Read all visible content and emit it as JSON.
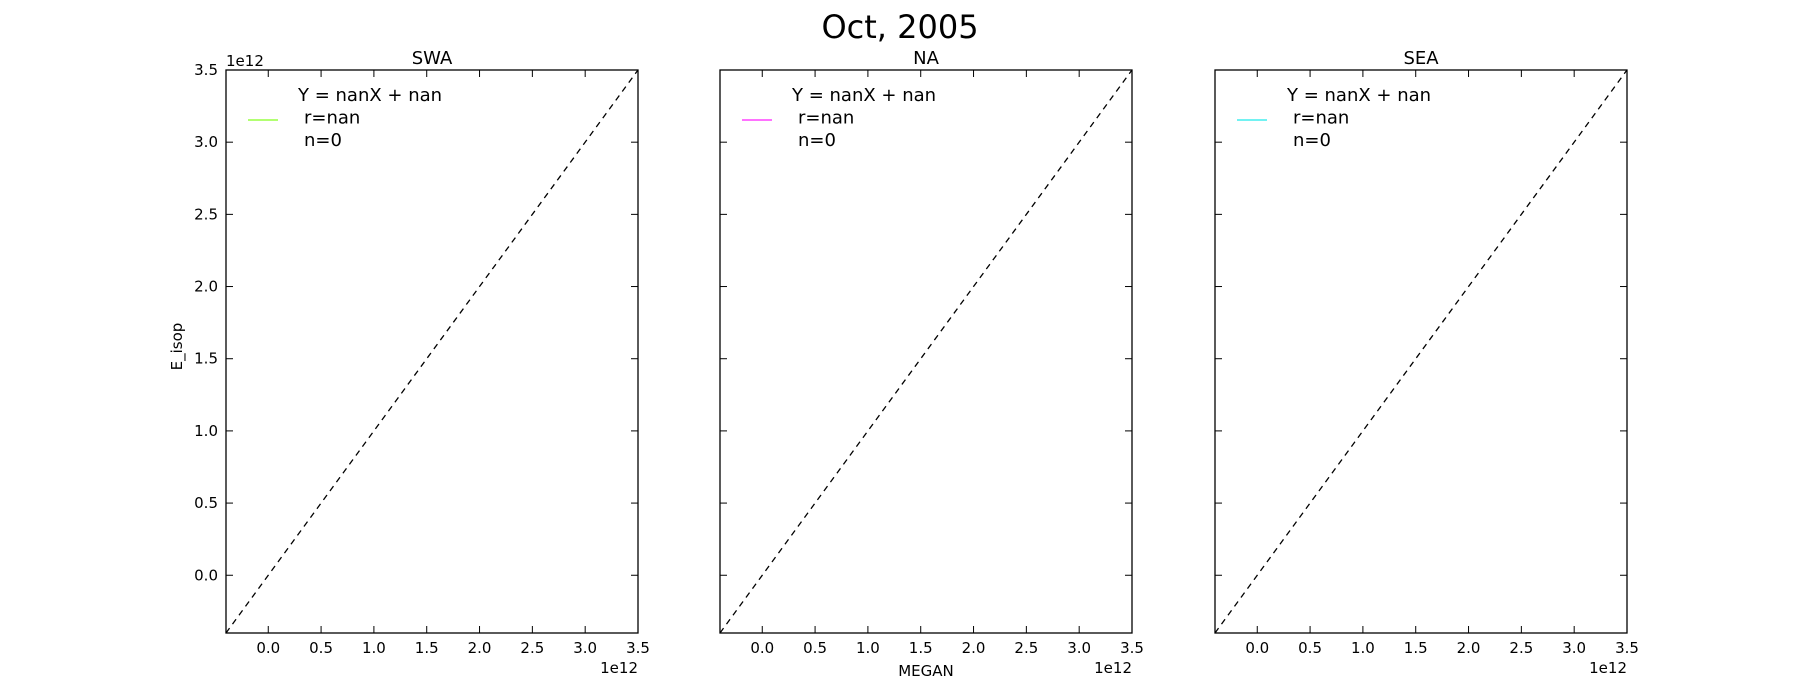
{
  "figure": {
    "title": "Oct, 2005"
  },
  "chart_data": [
    {
      "type": "scatter",
      "title": "SWA",
      "xlabel": "",
      "ylabel": "E_isop",
      "x_offset_label": "1e12",
      "y_offset_label": "1e12",
      "xlim": [
        -0.4,
        3.5
      ],
      "ylim": [
        -0.4,
        3.5
      ],
      "x_ticks": [
        0.0,
        0.5,
        1.0,
        1.5,
        2.0,
        2.5,
        3.0,
        3.5
      ],
      "x_tick_labels": [
        "0.0",
        "0.5",
        "1.0",
        "1.5",
        "2.0",
        "2.5",
        "3.0",
        "3.5"
      ],
      "y_ticks": [
        0.0,
        0.5,
        1.0,
        1.5,
        2.0,
        2.5,
        3.0,
        3.5
      ],
      "y_tick_labels": [
        "0.0",
        "0.5",
        "1.0",
        "1.5",
        "2.0",
        "2.5",
        "3.0",
        "3.5"
      ],
      "show_y_tick_labels": true,
      "points": [],
      "one_to_one_line": true,
      "legend": {
        "placement": "top-left",
        "color": "#99ff44",
        "lines": [
          "Y = nanX + nan",
          "r=nan",
          "n=0"
        ]
      }
    },
    {
      "type": "scatter",
      "title": "NA",
      "xlabel": "MEGAN",
      "ylabel": "",
      "x_offset_label": "1e12",
      "y_offset_label": "",
      "xlim": [
        -0.4,
        3.5
      ],
      "ylim": [
        -0.4,
        3.5
      ],
      "x_ticks": [
        0.0,
        0.5,
        1.0,
        1.5,
        2.0,
        2.5,
        3.0,
        3.5
      ],
      "x_tick_labels": [
        "0.0",
        "0.5",
        "1.0",
        "1.5",
        "2.0",
        "2.5",
        "3.0",
        "3.5"
      ],
      "y_ticks": [
        0.0,
        0.5,
        1.0,
        1.5,
        2.0,
        2.5,
        3.0,
        3.5
      ],
      "y_tick_labels": [],
      "show_y_tick_labels": false,
      "points": [],
      "one_to_one_line": true,
      "legend": {
        "placement": "top-left",
        "color": "#ff44ff",
        "lines": [
          "Y = nanX + nan",
          "r=nan",
          "n=0"
        ]
      }
    },
    {
      "type": "scatter",
      "title": "SEA",
      "xlabel": "",
      "ylabel": "",
      "x_offset_label": "1e12",
      "y_offset_label": "",
      "xlim": [
        -0.4,
        3.5
      ],
      "ylim": [
        -0.4,
        3.5
      ],
      "x_ticks": [
        0.0,
        0.5,
        1.0,
        1.5,
        2.0,
        2.5,
        3.0,
        3.5
      ],
      "x_tick_labels": [
        "0.0",
        "0.5",
        "1.0",
        "1.5",
        "2.0",
        "2.5",
        "3.0",
        "3.5"
      ],
      "y_ticks": [
        0.0,
        0.5,
        1.0,
        1.5,
        2.0,
        2.5,
        3.0,
        3.5
      ],
      "y_tick_labels": [],
      "show_y_tick_labels": false,
      "points": [],
      "one_to_one_line": true,
      "legend": {
        "placement": "top-left",
        "color": "#44eeee",
        "lines": [
          "Y = nanX + nan",
          "r=nan",
          "n=0"
        ]
      }
    }
  ]
}
